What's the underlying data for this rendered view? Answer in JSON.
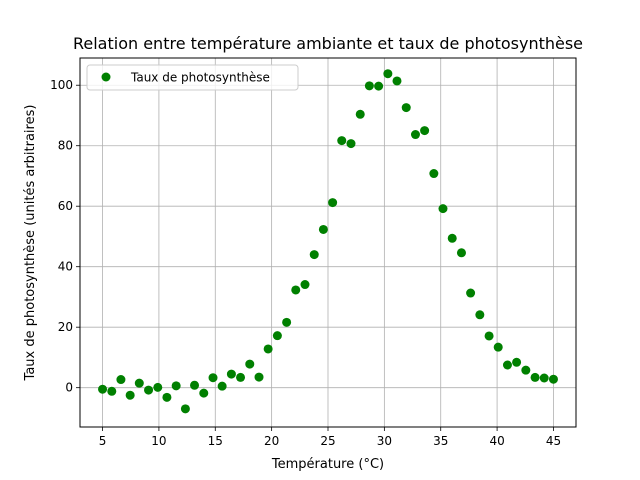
{
  "chart_data": {
    "type": "scatter",
    "title": "Relation entre température ambiante et taux de photosynthèse",
    "xlabel": "Température (°C)",
    "ylabel": "Taux de photosynthèse (unités arbitraires)",
    "xlim": [
      3.0,
      47.0
    ],
    "ylim": [
      -13.0,
      109.0
    ],
    "x_ticks": [
      5,
      10,
      15,
      20,
      25,
      30,
      35,
      40,
      45
    ],
    "y_ticks": [
      0,
      20,
      40,
      60,
      80,
      100
    ],
    "grid": true,
    "legend_position": "top-left",
    "series": [
      {
        "name": "Taux de photosynthèse",
        "color": "#008000",
        "marker": "circle",
        "x": [
          5.0,
          5.82,
          6.63,
          7.45,
          8.26,
          9.08,
          9.9,
          10.71,
          11.53,
          12.35,
          13.16,
          13.98,
          14.8,
          15.61,
          16.43,
          17.24,
          18.06,
          18.88,
          19.69,
          20.51,
          21.33,
          22.14,
          22.96,
          23.78,
          24.59,
          25.41,
          26.22,
          27.04,
          27.86,
          28.67,
          29.49,
          30.31,
          31.12,
          31.94,
          32.76,
          33.57,
          34.39,
          35.2,
          36.02,
          36.84,
          37.65,
          38.47,
          39.29,
          40.1,
          40.92,
          41.73,
          42.55,
          43.37,
          44.18,
          45.0
        ],
        "y": [
          -0.5,
          -1.2,
          2.7,
          -2.5,
          1.5,
          -0.8,
          0.1,
          -3.2,
          0.6,
          -7.0,
          0.8,
          -1.8,
          3.3,
          0.5,
          4.5,
          3.4,
          7.8,
          3.5,
          12.8,
          17.2,
          21.6,
          32.3,
          34.1,
          44.0,
          52.3,
          61.2,
          81.7,
          80.7,
          90.4,
          99.8,
          99.7,
          103.8,
          101.4,
          92.6,
          83.7,
          85.0,
          70.8,
          59.2,
          49.4,
          44.6,
          31.3,
          24.1,
          17.1,
          13.4,
          7.5,
          8.4,
          5.8,
          3.4,
          3.2,
          2.8
        ]
      }
    ]
  }
}
